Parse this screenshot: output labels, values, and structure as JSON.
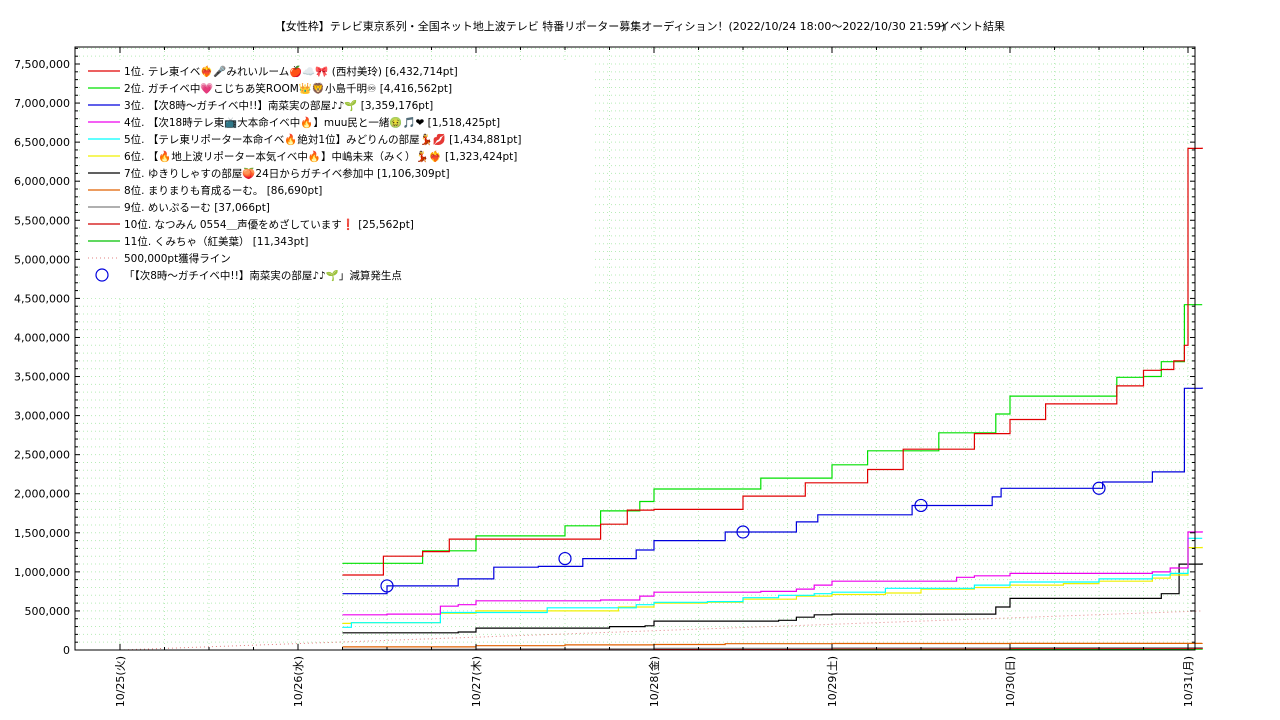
{
  "chart_data": {
    "type": "line",
    "title": "【女性枠】テレビ東京系列・全国ネット地上波テレビ 特番リポーター募集オーディション！(2022/10/24 18:00〜2022/10/30 21:59)",
    "subtitle": "イベント結果",
    "xlabel": "",
    "ylabel": "",
    "ylim": [
      0,
      7750000
    ],
    "xlim": [
      0,
      6.05
    ],
    "grid": true,
    "legend_position": "top-left",
    "x_tick_labels": [
      "10/25(火)",
      "10/26(水)",
      "10/27(木)",
      "10/28(金)",
      "10/29(土)",
      "10/30(日)",
      "10/31(月)"
    ],
    "x_tick_values": [
      0,
      1,
      2,
      3,
      4,
      5,
      6
    ],
    "y_tick_labels": [
      "0",
      "500,000",
      "1,000,000",
      "1,500,000",
      "2,000,000",
      "2,500,000",
      "3,000,000",
      "3,500,000",
      "4,000,000",
      "4,500,000",
      "5,000,000",
      "5,500,000",
      "6,000,000",
      "6,500,000",
      "7,000,000",
      "7,500,000"
    ],
    "y_tick_values": [
      0,
      500000,
      1000000,
      1500000,
      2000000,
      2500000,
      3000000,
      3500000,
      4000000,
      4500000,
      5000000,
      5500000,
      6000000,
      6500000,
      7000000,
      7500000
    ],
    "series": [
      {
        "name": "1位. テレ東イベ❤️‍🔥🎤みれいルーム🍎☁️🎀 (西村美玲) [6,432,714pt]",
        "color": "#e00000",
        "x": [
          1.25,
          1.4,
          1.48,
          1.7,
          1.85,
          2.0,
          2.5,
          2.7,
          2.85,
          3.0,
          3.5,
          3.75,
          3.85,
          4.0,
          4.2,
          4.4,
          4.6,
          4.7,
          4.8,
          5.0,
          5.2,
          5.5,
          5.6,
          5.75,
          5.85,
          5.92,
          5.98,
          6.0,
          6.08
        ],
        "y": [
          960000,
          960000,
          1200000,
          1260000,
          1420000,
          1420000,
          1420000,
          1610000,
          1790000,
          1800000,
          1970000,
          1970000,
          2140000,
          2140000,
          2310000,
          2570000,
          2570000,
          2570000,
          2770000,
          2950000,
          3150000,
          3150000,
          3380000,
          3580000,
          3590000,
          3700000,
          3900000,
          6420000,
          6430000
        ]
      },
      {
        "name": "2位. ガチイベ中💗こじちあ笑ROOM👑🦁小島千明♾ [4,416,562pt]",
        "color": "#00e000",
        "x": [
          1.25,
          1.48,
          1.7,
          1.85,
          2.0,
          2.5,
          2.7,
          2.85,
          2.92,
          3.0,
          3.5,
          3.6,
          3.85,
          4.0,
          4.2,
          4.4,
          4.6,
          4.7,
          4.8,
          4.92,
          5.0,
          5.5,
          5.6,
          5.75,
          5.85,
          5.92,
          5.98,
          6.08
        ],
        "y": [
          1110000,
          1110000,
          1270000,
          1270000,
          1460000,
          1590000,
          1780000,
          1780000,
          1900000,
          2060000,
          2060000,
          2200000,
          2200000,
          2370000,
          2550000,
          2550000,
          2780000,
          2780000,
          2780000,
          3020000,
          3250000,
          3250000,
          3490000,
          3500000,
          3690000,
          3690000,
          4420000,
          4420000
        ]
      },
      {
        "name": "3位. 【次8時〜ガチイベ中!!】南菜実の部屋♪♪🌱 [3,359,176pt]",
        "color": "#0000dd",
        "x": [
          1.25,
          1.32,
          1.5,
          1.72,
          1.9,
          2.1,
          2.35,
          2.6,
          2.9,
          3.0,
          3.3,
          3.4,
          3.6,
          3.8,
          3.92,
          4.35,
          4.45,
          4.6,
          4.75,
          4.9,
          4.95,
          5.3,
          5.48,
          5.52,
          5.7,
          5.8,
          5.9,
          5.98,
          6.08
        ],
        "y": [
          720000,
          720000,
          820000,
          820000,
          910000,
          1060000,
          1070000,
          1170000,
          1280000,
          1400000,
          1400000,
          1510000,
          1510000,
          1640000,
          1730000,
          1730000,
          1850000,
          1850000,
          1850000,
          1960000,
          2070000,
          2070000,
          2070000,
          2150000,
          2150000,
          2280000,
          2280000,
          3350000,
          3360000
        ]
      },
      {
        "name": "4位. 【次18時テレ東📺大本命イベ中🔥】muu民と一緒🤢🎵❤ [1,518,425pt]",
        "color": "#ee00ee",
        "x": [
          1.25,
          1.5,
          1.7,
          1.8,
          1.9,
          2.0,
          2.5,
          2.7,
          2.92,
          3.0,
          3.5,
          3.6,
          3.8,
          3.9,
          4.0,
          4.5,
          4.7,
          4.8,
          5.0,
          5.5,
          5.8,
          5.9,
          6.0,
          6.08
        ],
        "y": [
          450000,
          460000,
          460000,
          560000,
          580000,
          630000,
          630000,
          640000,
          690000,
          740000,
          740000,
          750000,
          780000,
          830000,
          880000,
          880000,
          930000,
          950000,
          980000,
          980000,
          1000000,
          1050000,
          1510000,
          1520000
        ]
      },
      {
        "name": "5位. 【テレ東リポーター本命イベ🔥絶対1位】みどりんの部屋💃💋 [1,434,881pt]",
        "color": "#00ffff",
        "x": [
          1.25,
          1.3,
          1.5,
          1.7,
          1.8,
          2.0,
          2.4,
          2.8,
          2.9,
          3.0,
          3.3,
          3.5,
          3.7,
          3.9,
          4.0,
          4.3,
          4.5,
          4.8,
          5.0,
          5.3,
          5.5,
          5.8,
          5.9,
          6.0,
          6.08
        ],
        "y": [
          290000,
          350000,
          350000,
          350000,
          480000,
          480000,
          540000,
          540000,
          580000,
          610000,
          620000,
          670000,
          700000,
          720000,
          740000,
          790000,
          790000,
          830000,
          870000,
          870000,
          910000,
          960000,
          980000,
          1430000,
          1430000
        ]
      },
      {
        "name": "6位. 【🔥地上波リポーター本気イベ中🔥】中嶋未来（みく）💃❤️‍🔥 [1,323,424pt]",
        "color": "#f0f000",
        "x": [
          1.25,
          1.3,
          1.7,
          1.8,
          2.0,
          2.4,
          2.8,
          3.0,
          3.3,
          3.5,
          3.8,
          4.0,
          4.3,
          4.5,
          4.8,
          5.0,
          5.3,
          5.5,
          5.8,
          5.9,
          6.0,
          6.08
        ],
        "y": [
          340000,
          350000,
          350000,
          470000,
          500000,
          500000,
          550000,
          600000,
          610000,
          650000,
          690000,
          710000,
          730000,
          780000,
          800000,
          830000,
          850000,
          880000,
          920000,
          960000,
          1310000,
          1320000
        ]
      },
      {
        "name": "7位. ゆきりしゃすの部屋🍑24日からガチイベ参加中 [1,106,309pt]",
        "color": "#000000",
        "x": [
          1.25,
          1.5,
          1.7,
          1.9,
          2.0,
          2.5,
          2.75,
          2.95,
          3.0,
          3.5,
          3.7,
          3.8,
          3.9,
          4.0,
          4.5,
          4.8,
          4.92,
          5.0,
          5.5,
          5.75,
          5.85,
          5.95,
          6.08
        ],
        "y": [
          220000,
          220000,
          220000,
          230000,
          280000,
          280000,
          300000,
          310000,
          370000,
          370000,
          380000,
          420000,
          450000,
          460000,
          460000,
          460000,
          550000,
          660000,
          660000,
          660000,
          720000,
          1100000,
          1110000
        ]
      },
      {
        "name": "8位. まりまりも育成るーむ。 [86,690pt]",
        "color": "#e06000",
        "x": [
          1.25,
          2.0,
          2.5,
          3.0,
          3.4,
          4.0,
          5.0,
          6.08
        ],
        "y": [
          40000,
          55000,
          65000,
          70000,
          80000,
          83000,
          85000,
          86690
        ]
      },
      {
        "name": "9位. めいぷるーむ [37,066pt]",
        "color": "#808080",
        "x": [
          1.25,
          2.0,
          3.0,
          4.0,
          5.0,
          6.08
        ],
        "y": [
          10000,
          15000,
          20000,
          25000,
          30000,
          37066
        ]
      },
      {
        "name": "10位. なつみん 0554＿声優をめざしています❗ [25,562pt]",
        "color": "#d00000",
        "x": [
          1.25,
          2.0,
          3.0,
          4.0,
          5.0,
          6.08
        ],
        "y": [
          5000,
          8000,
          12000,
          17000,
          21000,
          25562
        ]
      },
      {
        "name": "11位. くみちゃ（紅美葉） [11,343pt]",
        "color": "#00c000",
        "x": [
          1.25,
          2.0,
          3.0,
          4.0,
          5.0,
          6.08
        ],
        "y": [
          2000,
          4000,
          6000,
          8000,
          10000,
          11343
        ]
      }
    ],
    "reference_line": {
      "name": "500,000pt獲得ライン",
      "color": "#e08080",
      "x": [
        0,
        6.08
      ],
      "y": [
        0,
        500000
      ]
    },
    "markers": {
      "name": "「【次8時〜ガチイベ中!!】南菜実の部屋♪♪🌱」減算発生点",
      "color": "#0000dd",
      "x": [
        1.5,
        2.5,
        3.5,
        4.5,
        5.5
      ],
      "y": [
        820000,
        1170000,
        1510000,
        1850000,
        2070000
      ]
    }
  }
}
